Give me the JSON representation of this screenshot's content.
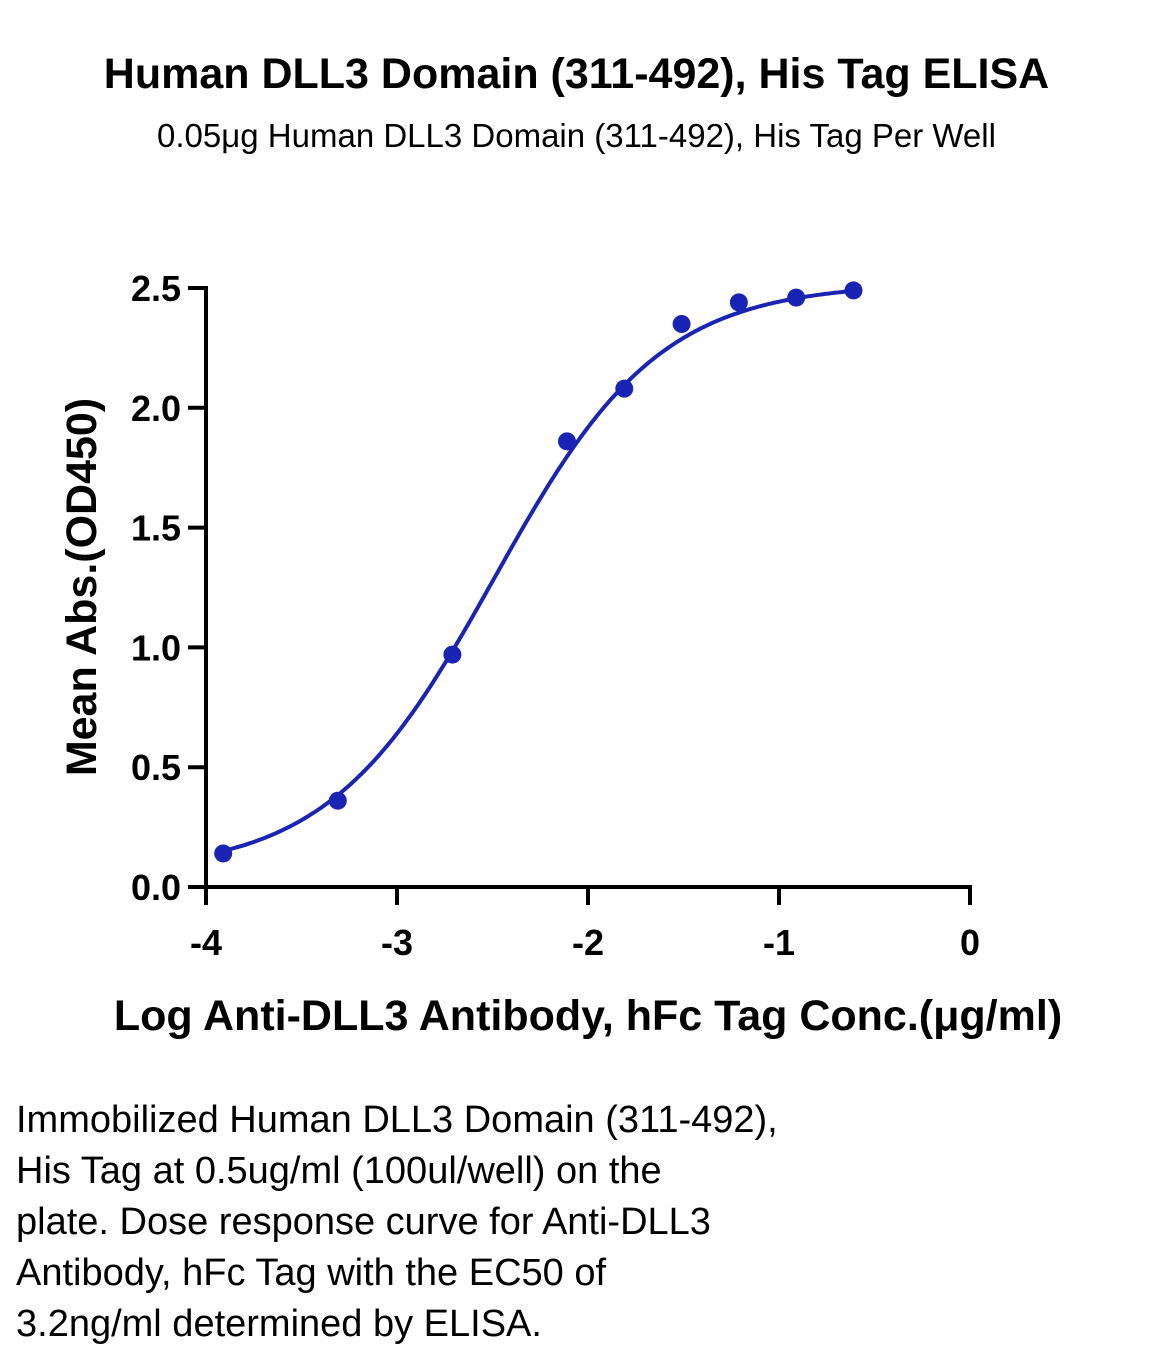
{
  "chart_data": {
    "type": "scatter",
    "title": "Human DLL3 Domain (311-492), His Tag ELISA",
    "subtitle": "0.05μg Human DLL3 Domain (311-492), His Tag Per Well",
    "xlabel": "Log Anti-DLL3 Antibody, hFc Tag Conc.(μg/ml)",
    "ylabel": "Mean Abs.(OD450)",
    "xlim": [
      -4,
      0
    ],
    "ylim": [
      0,
      2.5
    ],
    "x_ticks": [
      "-4",
      "-3",
      "-2",
      "-1",
      "0"
    ],
    "y_ticks": [
      "0.0",
      "0.5",
      "1.0",
      "1.5",
      "2.0",
      "2.5"
    ],
    "series": [
      {
        "x": [
          -3.91,
          -3.31,
          -2.71,
          -2.11,
          -1.81,
          -1.51,
          -1.21,
          -0.91,
          -0.61
        ],
        "y": [
          0.14,
          0.36,
          0.97,
          1.86,
          2.08,
          2.35,
          2.44,
          2.46,
          2.49
        ],
        "fit": {
          "model": "4PL",
          "bottom": 0.06,
          "top": 2.52,
          "log_ec50": -2.49,
          "hill": 1.0
        },
        "color": "#1a24b4"
      }
    ],
    "grid": false,
    "legend": "none"
  },
  "caption": "Immobilized Human DLL3 Domain (311-492),\nHis Tag at 0.5ug/ml (100ul/well) on the\nplate. Dose response curve for Anti-DLL3\nAntibody, hFc Tag with the EC50 of\n3.2ng/ml determined by ELISA."
}
